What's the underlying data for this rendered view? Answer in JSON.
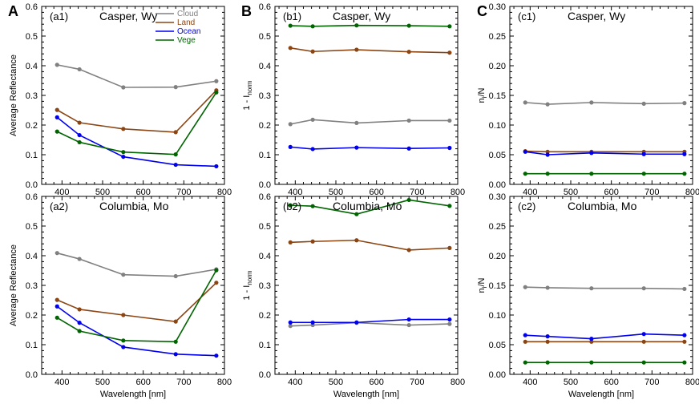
{
  "figure": {
    "section_labels": [
      "A",
      "B",
      "C"
    ],
    "x_axis_label": "Wavelength [nm]",
    "x_ticks": [
      400,
      500,
      600,
      700,
      800
    ],
    "y_label_main": "1 - I",
    "y_label_sub": "norm",
    "ratio_label_main": "n",
    "ratio_label_sub": "i",
    "ratio_label_tail": "/N"
  },
  "colors": {
    "Cloud": "#808080",
    "Land": "#8B4513",
    "Ocean": "#0000EE",
    "Vege": "#006400"
  },
  "chart_data": [
    {
      "type": "line",
      "id": "a1",
      "panel": "(a1)",
      "title": "Casper, Wy",
      "xlabel": "",
      "ylabel": "Average Reflectance",
      "xlim": [
        350,
        800
      ],
      "ylim": [
        0,
        0.6
      ],
      "yticks": [
        "0.0",
        "0.1",
        "0.2",
        "0.3",
        "0.4",
        "0.5",
        "0.6"
      ],
      "show_legend": true,
      "x": [
        388,
        443,
        551,
        680,
        780
      ],
      "series": [
        {
          "name": "Cloud",
          "values": [
            0.403,
            0.388,
            0.327,
            0.328,
            0.348
          ]
        },
        {
          "name": "Land",
          "values": [
            0.251,
            0.208,
            0.187,
            0.176,
            0.317
          ]
        },
        {
          "name": "Ocean",
          "values": [
            0.226,
            0.166,
            0.093,
            0.066,
            0.061
          ]
        },
        {
          "name": "Vege",
          "values": [
            0.178,
            0.142,
            0.109,
            0.101,
            0.31
          ]
        }
      ]
    },
    {
      "type": "line",
      "id": "b1",
      "panel": "(b1)",
      "title": "Casper, Wy",
      "xlabel": "",
      "ylabel": "1 - I_norm",
      "xlim": [
        350,
        800
      ],
      "ylim": [
        0,
        0.6
      ],
      "yticks": [
        "0.0",
        "0.1",
        "0.2",
        "0.3",
        "0.4",
        "0.5",
        "0.6"
      ],
      "show_legend": false,
      "x": [
        388,
        443,
        551,
        680,
        780
      ],
      "series": [
        {
          "name": "Cloud",
          "values": [
            0.203,
            0.218,
            0.207,
            0.215,
            0.215
          ]
        },
        {
          "name": "Land",
          "values": [
            0.46,
            0.448,
            0.454,
            0.447,
            0.444
          ]
        },
        {
          "name": "Ocean",
          "values": [
            0.126,
            0.119,
            0.124,
            0.121,
            0.123
          ]
        },
        {
          "name": "Vege",
          "values": [
            0.535,
            0.533,
            0.536,
            0.535,
            0.533
          ]
        }
      ]
    },
    {
      "type": "line",
      "id": "c1",
      "panel": "(c1)",
      "title": "Casper, Wy",
      "xlabel": "",
      "ylabel": "n_i/N",
      "xlim": [
        350,
        800
      ],
      "ylim": [
        0,
        0.3
      ],
      "yticks": [
        "0.00",
        "0.05",
        "0.10",
        "0.15",
        "0.20",
        "0.25",
        "0.30"
      ],
      "show_legend": false,
      "x": [
        388,
        443,
        551,
        680,
        780
      ],
      "series": [
        {
          "name": "Cloud",
          "values": [
            0.138,
            0.135,
            0.138,
            0.136,
            0.137
          ]
        },
        {
          "name": "Land",
          "values": [
            0.056,
            0.055,
            0.055,
            0.055,
            0.055
          ]
        },
        {
          "name": "Ocean",
          "values": [
            0.055,
            0.05,
            0.053,
            0.051,
            0.051
          ]
        },
        {
          "name": "Vege",
          "values": [
            0.018,
            0.018,
            0.018,
            0.018,
            0.018
          ]
        }
      ]
    },
    {
      "type": "line",
      "id": "a2",
      "panel": "(a2)",
      "title": "Columbia, Mo",
      "xlabel": "Wavelength [nm]",
      "ylabel": "Average Reflectance",
      "xlim": [
        350,
        800
      ],
      "ylim": [
        0,
        0.6
      ],
      "yticks": [
        "0.0",
        "0.1",
        "0.2",
        "0.3",
        "0.4",
        "0.5",
        "0.6"
      ],
      "show_legend": false,
      "x": [
        388,
        443,
        551,
        680,
        780
      ],
      "series": [
        {
          "name": "Cloud",
          "values": [
            0.409,
            0.389,
            0.336,
            0.331,
            0.354
          ]
        },
        {
          "name": "Land",
          "values": [
            0.251,
            0.219,
            0.2,
            0.178,
            0.309
          ]
        },
        {
          "name": "Ocean",
          "values": [
            0.229,
            0.174,
            0.092,
            0.068,
            0.063
          ]
        },
        {
          "name": "Vege",
          "values": [
            0.191,
            0.146,
            0.114,
            0.11,
            0.351
          ]
        }
      ]
    },
    {
      "type": "line",
      "id": "b2",
      "panel": "(b2)",
      "title": "Columbia, Mo",
      "xlabel": "Wavelength [nm]",
      "ylabel": "1 - I_norm",
      "xlim": [
        350,
        800
      ],
      "ylim": [
        0,
        0.6
      ],
      "yticks": [
        "0.0",
        "0.1",
        "0.2",
        "0.3",
        "0.4",
        "0.5",
        "0.6"
      ],
      "show_legend": false,
      "x": [
        388,
        443,
        551,
        680,
        780
      ],
      "series": [
        {
          "name": "Cloud",
          "values": [
            0.163,
            0.166,
            0.174,
            0.166,
            0.17
          ]
        },
        {
          "name": "Land",
          "values": [
            0.445,
            0.448,
            0.452,
            0.419,
            0.426
          ]
        },
        {
          "name": "Ocean",
          "values": [
            0.175,
            0.175,
            0.175,
            0.185,
            0.185
          ]
        },
        {
          "name": "Vege",
          "values": [
            0.57,
            0.567,
            0.54,
            0.588,
            0.568
          ]
        }
      ]
    },
    {
      "type": "line",
      "id": "c2",
      "panel": "(c2)",
      "title": "Columbia, Mo",
      "xlabel": "Wavelength [nm]",
      "ylabel": "n_i/N",
      "xlim": [
        350,
        800
      ],
      "ylim": [
        0,
        0.3
      ],
      "yticks": [
        "0.00",
        "0.05",
        "0.10",
        "0.15",
        "0.20",
        "0.25",
        "0.30"
      ],
      "show_legend": false,
      "x": [
        388,
        443,
        551,
        680,
        780
      ],
      "series": [
        {
          "name": "Cloud",
          "values": [
            0.147,
            0.146,
            0.145,
            0.145,
            0.144
          ]
        },
        {
          "name": "Land",
          "values": [
            0.055,
            0.055,
            0.055,
            0.055,
            0.055
          ]
        },
        {
          "name": "Ocean",
          "values": [
            0.066,
            0.064,
            0.06,
            0.068,
            0.066
          ]
        },
        {
          "name": "Vege",
          "values": [
            0.02,
            0.02,
            0.02,
            0.02,
            0.02
          ]
        }
      ]
    }
  ]
}
